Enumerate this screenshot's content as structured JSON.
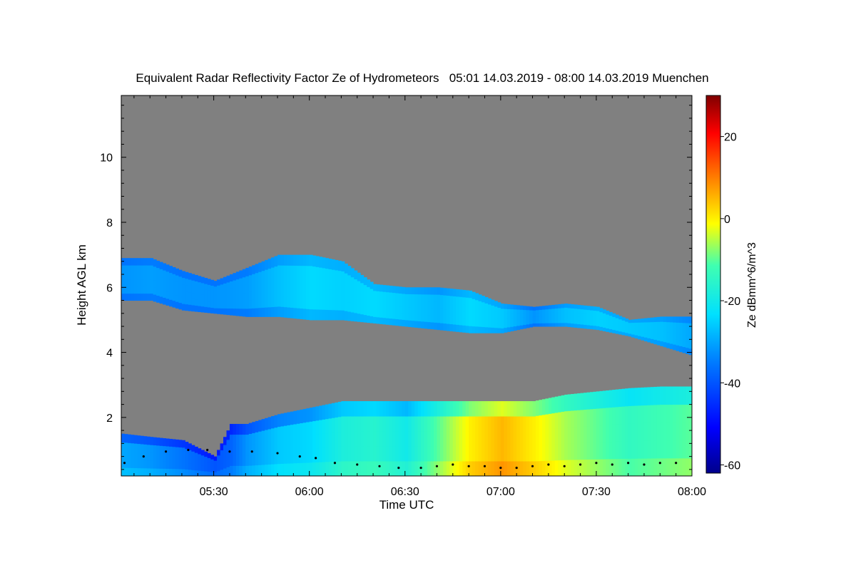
{
  "chart_data": {
    "type": "heatmap",
    "title": "Equivalent Radar Reflectivity Factor Ze of Hydrometeors   05:01 14.03.2019 - 08:00 14.03.2019 Muenchen",
    "xlabel": "Time UTC",
    "ylabel": "Height AGL km",
    "x_unit": "minutes after 05:00 UTC",
    "xlim": [
      1,
      180
    ],
    "ylim": [
      0.2,
      11.9
    ],
    "x_ticks": [
      {
        "value": 30,
        "label": "05:30"
      },
      {
        "value": 60,
        "label": "06:00"
      },
      {
        "value": 90,
        "label": "06:30"
      },
      {
        "value": 120,
        "label": "07:00"
      },
      {
        "value": 150,
        "label": "07:30"
      },
      {
        "value": 180,
        "label": "08:00"
      }
    ],
    "y_ticks": [
      {
        "value": 2,
        "label": "2"
      },
      {
        "value": 4,
        "label": "4"
      },
      {
        "value": 6,
        "label": "6"
      },
      {
        "value": 8,
        "label": "8"
      },
      {
        "value": 10,
        "label": "10"
      }
    ],
    "grid": false,
    "colorbar": {
      "label": "Ze dBmm^6/m^3",
      "range": [
        -62,
        30
      ],
      "ticks": [
        {
          "value": -60,
          "label": "-60"
        },
        {
          "value": -40,
          "label": "-40"
        },
        {
          "value": -20,
          "label": "-20"
        },
        {
          "value": 0,
          "label": "0"
        },
        {
          "value": 20,
          "label": "20"
        }
      ]
    },
    "background": "no signal (grey)",
    "upper_cloud_layer": {
      "description": "ice cloud layer descending from ~6.9 km to ~5 km",
      "x": [
        1,
        10,
        20,
        30,
        40,
        50,
        60,
        70,
        80,
        90,
        100,
        110,
        120,
        130,
        140,
        150,
        160,
        170,
        180
      ],
      "top_km": [
        6.9,
        6.9,
        6.5,
        6.2,
        6.6,
        7.0,
        7.0,
        6.8,
        6.1,
        6.0,
        6.0,
        5.9,
        5.5,
        5.4,
        5.5,
        5.4,
        5.0,
        5.1,
        5.1
      ],
      "base_km": [
        5.6,
        5.6,
        5.3,
        5.2,
        5.1,
        5.1,
        5.0,
        5.0,
        4.9,
        4.8,
        4.7,
        4.6,
        4.6,
        4.8,
        4.8,
        4.7,
        4.5,
        4.2,
        3.9
      ],
      "ze_dbz": [
        -32,
        -31,
        -32,
        -32,
        -31,
        -27,
        -24,
        -25,
        -24,
        -26,
        -28,
        -24,
        -26,
        -32,
        -27,
        -25,
        -26,
        -27,
        -30
      ]
    },
    "lower_precip_layer": {
      "description": "low-level precipitation echo, increasing in height and intensity",
      "x": [
        1,
        10,
        20,
        30,
        35,
        40,
        50,
        60,
        70,
        80,
        90,
        100,
        110,
        120,
        130,
        140,
        150,
        160,
        170,
        180
      ],
      "top_km": [
        1.5,
        1.4,
        1.3,
        0.8,
        1.8,
        1.8,
        2.1,
        2.3,
        2.5,
        2.5,
        2.5,
        2.5,
        2.5,
        2.5,
        2.5,
        2.7,
        2.8,
        2.9,
        2.95,
        2.95
      ],
      "ze_dbz": [
        -30,
        -32,
        -36,
        -40,
        -38,
        -32,
        -26,
        -24,
        -18,
        -16,
        -20,
        -10,
        0,
        5,
        0,
        -6,
        -10,
        -14,
        -12,
        -10
      ]
    },
    "black_dots": {
      "description": "scattered black point markers (cloud base detections)",
      "x": [
        2,
        8,
        15,
        22,
        28,
        35,
        42,
        50,
        57,
        62,
        68,
        75,
        82,
        88,
        95,
        100,
        105,
        110,
        115,
        120,
        125,
        130,
        135,
        140,
        145,
        150,
        155,
        160,
        165,
        170,
        175
      ],
      "y_km": [
        0.6,
        0.8,
        0.95,
        1.0,
        1.0,
        0.95,
        0.95,
        0.9,
        0.8,
        0.75,
        0.6,
        0.55,
        0.5,
        0.45,
        0.45,
        0.5,
        0.55,
        0.5,
        0.5,
        0.45,
        0.45,
        0.5,
        0.55,
        0.5,
        0.55,
        0.6,
        0.55,
        0.6,
        0.55,
        0.6,
        0.6
      ]
    }
  }
}
